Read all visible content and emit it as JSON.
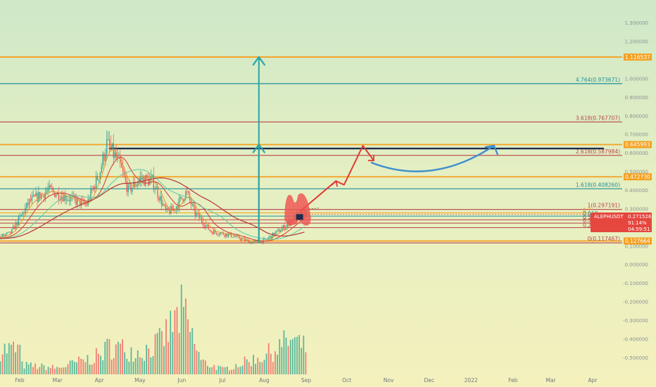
{
  "symbol": "ALEPHUSDT",
  "price_badge": {
    "symbol": "ALEPHUSDT",
    "price": "0.271526",
    "change": "91.14%",
    "countdown": "04:59:51",
    "color": "#e5473f"
  },
  "colors": {
    "level_orange": "#f5a020",
    "level_teal": "#1f8f9c",
    "level_red": "#b8444c",
    "level_navy": "#1d2d50",
    "arrow_teal": "#27a6a6",
    "arrow_red": "#e03a35",
    "arc_blue": "#3e8fcf",
    "up_candle": "#2b9f8c",
    "down_candle": "#ef5350",
    "volume_up": "#3fae95",
    "volume_down": "#ef6b66",
    "mark_brown": "#8a5a2c"
  },
  "chart_data": {
    "type": "candlestick",
    "symbol": "ALEPHUSDT",
    "x_ticks": [
      "Feb",
      "Mar",
      "Apr",
      "May",
      "Jun",
      "Jul",
      "Aug",
      "Sep",
      "Oct",
      "Nov",
      "Dec",
      "2022",
      "Feb",
      "Mar",
      "Apr"
    ],
    "y_ticks": [
      "1.300000",
      "1.200000",
      "1.000000",
      "0.900000",
      "0.800000",
      "0.700000",
      "0.600000",
      "0.500000",
      "0.400000",
      "0.300000",
      "0.100000",
      "0.000000",
      "-0.100000",
      "-0.200000",
      "-0.300000",
      "-0.400000",
      "-0.500000"
    ],
    "ylim": [
      -0.54,
      1.34
    ],
    "grid": false,
    "last_price": 0.271526,
    "level_labels": [
      {
        "label": "1.116537",
        "value": 1.116537,
        "color": "orange",
        "boxed": true
      },
      {
        "label": "4.764(0.973671)",
        "value": 0.973671,
        "color": "teal",
        "boxed": false
      },
      {
        "label": "3.618(0.767707)",
        "value": 0.767707,
        "color": "red",
        "boxed": false
      },
      {
        "label": "0.645993",
        "value": 0.645993,
        "color": "orange",
        "boxed": true
      },
      {
        "label": "2.618(0.587984)",
        "value": 0.587984,
        "color": "red",
        "boxed": false
      },
      {
        "label": "0.472730",
        "value": 0.47273,
        "color": "orange",
        "boxed": true
      },
      {
        "label": "1.618(0.408260)",
        "value": 0.40826,
        "color": "teal",
        "boxed": false
      },
      {
        "label": "1(0.297191)",
        "value": 0.297191,
        "color": "red",
        "boxed": false
      },
      {
        "label": "0(0.117467)",
        "value": 0.117467,
        "color": "red",
        "boxed": false
      },
      {
        "label": "0.127664",
        "value": 0.127664,
        "color": "orange",
        "boxed": true
      }
    ],
    "minor_levels": [
      {
        "label": "0.7",
        "value": 0.2788,
        "color": "orange"
      },
      {
        "label": "0.618",
        "value": 0.2615,
        "color": "teal"
      },
      {
        "label": "0.5",
        "value": 0.2416,
        "color": "red"
      },
      {
        "label": "0.382",
        "value": 0.2235,
        "color": "red"
      },
      {
        "label": "0.236",
        "value": 0.1997,
        "color": "red"
      }
    ],
    "resistance_line": {
      "value": 0.625,
      "color": "navy"
    },
    "price_series": [
      {
        "date": "2021-01-13",
        "close": 0.14
      },
      {
        "date": "2021-01-25",
        "close": 0.17
      },
      {
        "date": "2021-02-08",
        "close": 0.34
      },
      {
        "date": "2021-02-22",
        "close": 0.4
      },
      {
        "date": "2021-03-08",
        "close": 0.36
      },
      {
        "date": "2021-03-22",
        "close": 0.32
      },
      {
        "date": "2021-04-01",
        "close": 0.5
      },
      {
        "date": "2021-04-06",
        "close": 0.65
      },
      {
        "date": "2021-04-15",
        "close": 0.55
      },
      {
        "date": "2021-04-22",
        "close": 0.4
      },
      {
        "date": "2021-05-01",
        "close": 0.46
      },
      {
        "date": "2021-05-10",
        "close": 0.45
      },
      {
        "date": "2021-05-20",
        "close": 0.28
      },
      {
        "date": "2021-05-26",
        "close": 0.3
      },
      {
        "date": "2021-06-04",
        "close": 0.39
      },
      {
        "date": "2021-06-10",
        "close": 0.28
      },
      {
        "date": "2021-06-22",
        "close": 0.18
      },
      {
        "date": "2021-07-06",
        "close": 0.16
      },
      {
        "date": "2021-07-22",
        "close": 0.12
      },
      {
        "date": "2021-08-01",
        "close": 0.13
      },
      {
        "date": "2021-08-15",
        "close": 0.2
      },
      {
        "date": "2021-08-27",
        "close": 0.28
      },
      {
        "date": "2021-09-01",
        "close": 0.27
      }
    ],
    "volume_series": [
      {
        "date": "2021-02-01",
        "volume": 0.15
      },
      {
        "date": "2021-03-01",
        "volume": 0.1
      },
      {
        "date": "2021-04-01",
        "volume": 0.3
      },
      {
        "date": "2021-04-08",
        "volume": 0.45
      },
      {
        "date": "2021-05-01",
        "volume": 0.35
      },
      {
        "date": "2021-05-15",
        "volume": 0.5
      },
      {
        "date": "2021-06-01",
        "volume": 1.0
      },
      {
        "date": "2021-06-15",
        "volume": 0.2
      },
      {
        "date": "2021-07-01",
        "volume": 0.08
      },
      {
        "date": "2021-08-01",
        "volume": 0.3
      },
      {
        "date": "2021-08-20",
        "volume": 0.55
      },
      {
        "date": "2021-09-01",
        "volume": 0.4
      }
    ],
    "drawings": [
      {
        "name": "arrow-teal-tall",
        "shape": "vertical arrow",
        "date": "2021-07-28",
        "from": 0.117467,
        "to": 1.116537
      },
      {
        "name": "arrow-teal-short",
        "shape": "vertical arrow",
        "date": "2021-07-28",
        "from": 0.117467,
        "to": 0.645993
      },
      {
        "name": "path-red-projection",
        "shape": "zigzag arrow",
        "points": [
          [
            "2021-08-28",
            0.29
          ],
          [
            "2021-09-23",
            0.45
          ],
          [
            "2021-09-29",
            0.43
          ],
          [
            "2021-10-13",
            0.64
          ],
          [
            "2021-10-21",
            0.56
          ]
        ]
      },
      {
        "name": "arc-blue-projection",
        "shape": "curved arrow",
        "from": [
          "2021-10-19",
          0.55
        ],
        "to": [
          "2022-01-18",
          0.64
        ]
      },
      {
        "name": "highlight-red-m",
        "shape": "M pattern highlight",
        "date_range": [
          "2021-08-16",
          "2021-09-04"
        ]
      }
    ]
  }
}
